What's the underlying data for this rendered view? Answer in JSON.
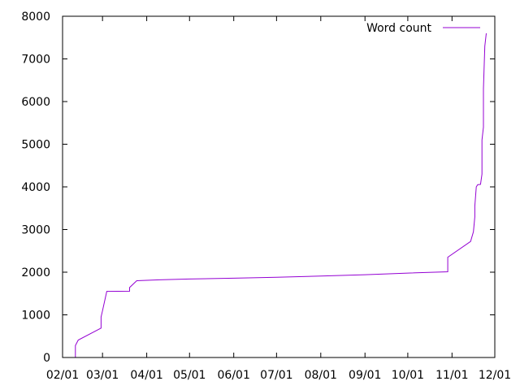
{
  "chart_data": {
    "type": "line",
    "title": "",
    "xlabel": "",
    "ylabel": "",
    "x_ticks": [
      "02/01",
      "03/01",
      "04/01",
      "05/01",
      "06/01",
      "07/01",
      "08/01",
      "09/01",
      "10/01",
      "11/01",
      "12/01"
    ],
    "xlim": [
      "02/01",
      "12/01"
    ],
    "y_ticks": [
      0,
      1000,
      2000,
      3000,
      4000,
      5000,
      6000,
      7000,
      8000
    ],
    "ylim": [
      0,
      8000
    ],
    "grid": false,
    "legend": {
      "position": "top-right",
      "entries": [
        "Word count"
      ]
    },
    "series": [
      {
        "name": "Word count",
        "color": "#9400d3",
        "points": [
          [
            "02/10",
            0
          ],
          [
            "02/10",
            280
          ],
          [
            "02/12",
            410
          ],
          [
            "02/28",
            690
          ],
          [
            "02/28",
            950
          ],
          [
            "03/01",
            1100
          ],
          [
            "03/04",
            1550
          ],
          [
            "03/20",
            1555
          ],
          [
            "03/20",
            1640
          ],
          [
            "03/25",
            1800
          ],
          [
            "04/10",
            1820
          ],
          [
            "05/01",
            1840
          ],
          [
            "06/01",
            1860
          ],
          [
            "07/01",
            1880
          ],
          [
            "08/01",
            1910
          ],
          [
            "09/01",
            1940
          ],
          [
            "10/01",
            1980
          ],
          [
            "10/29",
            2010
          ],
          [
            "10/29",
            2350
          ],
          [
            "11/14",
            2720
          ],
          [
            "11/16",
            2950
          ],
          [
            "11/17",
            3300
          ],
          [
            "11/17",
            3550
          ],
          [
            "11/18",
            4000
          ],
          [
            "11/19",
            4050
          ],
          [
            "11/21",
            4060
          ],
          [
            "11/22",
            4300
          ],
          [
            "11/22",
            5100
          ],
          [
            "11/23",
            5400
          ],
          [
            "11/23",
            6300
          ],
          [
            "11/24",
            7300
          ],
          [
            "11/25",
            7600
          ]
        ]
      }
    ]
  }
}
